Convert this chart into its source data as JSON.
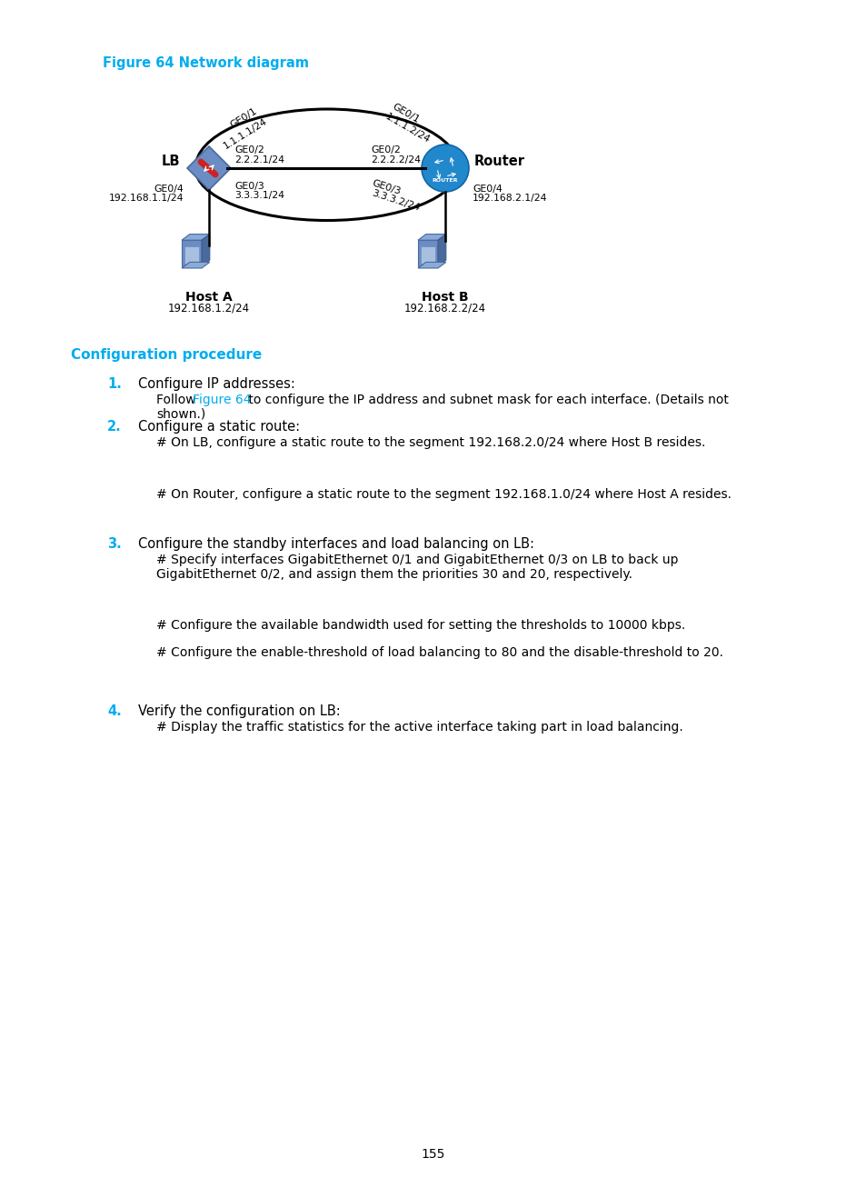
{
  "figure_title": "Figure 64 Network diagram",
  "figure_title_color": "#00ADEF",
  "section_title": "Configuration procedure",
  "section_title_color": "#00ADEF",
  "bg_color": "#ffffff",
  "page_number": "155",
  "steps": [
    {
      "number": "1.",
      "number_color": "#00ADEF",
      "title": "Configure IP addresses:"
    },
    {
      "number": "2.",
      "number_color": "#00ADEF",
      "title": "Configure a static route:"
    },
    {
      "number": "3.",
      "number_color": "#00ADEF",
      "title": "Configure the standby interfaces and load balancing on LB:"
    },
    {
      "number": "4.",
      "number_color": "#00ADEF",
      "title": "Verify the configuration on LB:"
    }
  ],
  "network_diagram": {
    "lb_label": "LB",
    "router_label": "Router",
    "host_a_label": "Host A",
    "host_b_label": "Host B",
    "host_a_ip": "192.168.1.2/24",
    "host_b_ip": "192.168.2.2/24",
    "lb_ge04": "GE0/4",
    "lb_ge04_ip": "192.168.1.1/24",
    "lb_ge01": "GE0/1",
    "lb_ge01_ip": "1.1.1.1/24",
    "lb_ge02": "GE0/2",
    "lb_ge02_ip": "2.2.2.1/24",
    "lb_ge03": "GE0/3",
    "lb_ge03_ip": "3.3.3.1/24",
    "router_ge01": "GE0/1",
    "router_ge01_ip": "1.1.1.2/24",
    "router_ge02": "GE0/2",
    "router_ge02_ip": "2.2.2.2/24",
    "router_ge03": "GE0/3",
    "router_ge03_ip": "3.3.3.2/24",
    "router_ge04": "GE0/4",
    "router_ge04_ip": "192.168.2.1/24"
  }
}
